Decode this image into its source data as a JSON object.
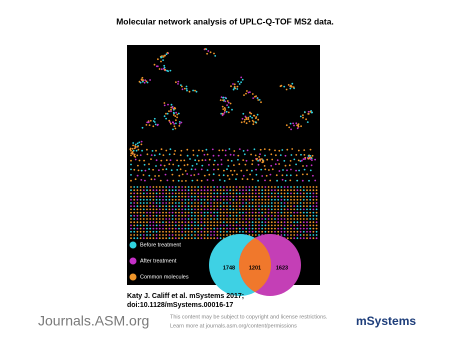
{
  "header": {
    "title": "Molecular network analysis of UPLC-Q-TOF MS2 data."
  },
  "figure": {
    "legend": [
      "Before treatment",
      "After treatment",
      "Common molecules"
    ],
    "venn": {
      "before": 1748,
      "common": 1201,
      "after": 1623
    }
  },
  "citation": [
    "Katy J. Califf et al. mSystems 2017;",
    "doi:10.1128/mSystems.00016-17"
  ],
  "footer": {
    "logo": "Journals.ASM.org",
    "notice": [
      "This content may be subject to copyright and license restrictions.",
      "Learn more at journals.asm.org/content/permissions"
    ],
    "journal": "mSystems"
  }
}
